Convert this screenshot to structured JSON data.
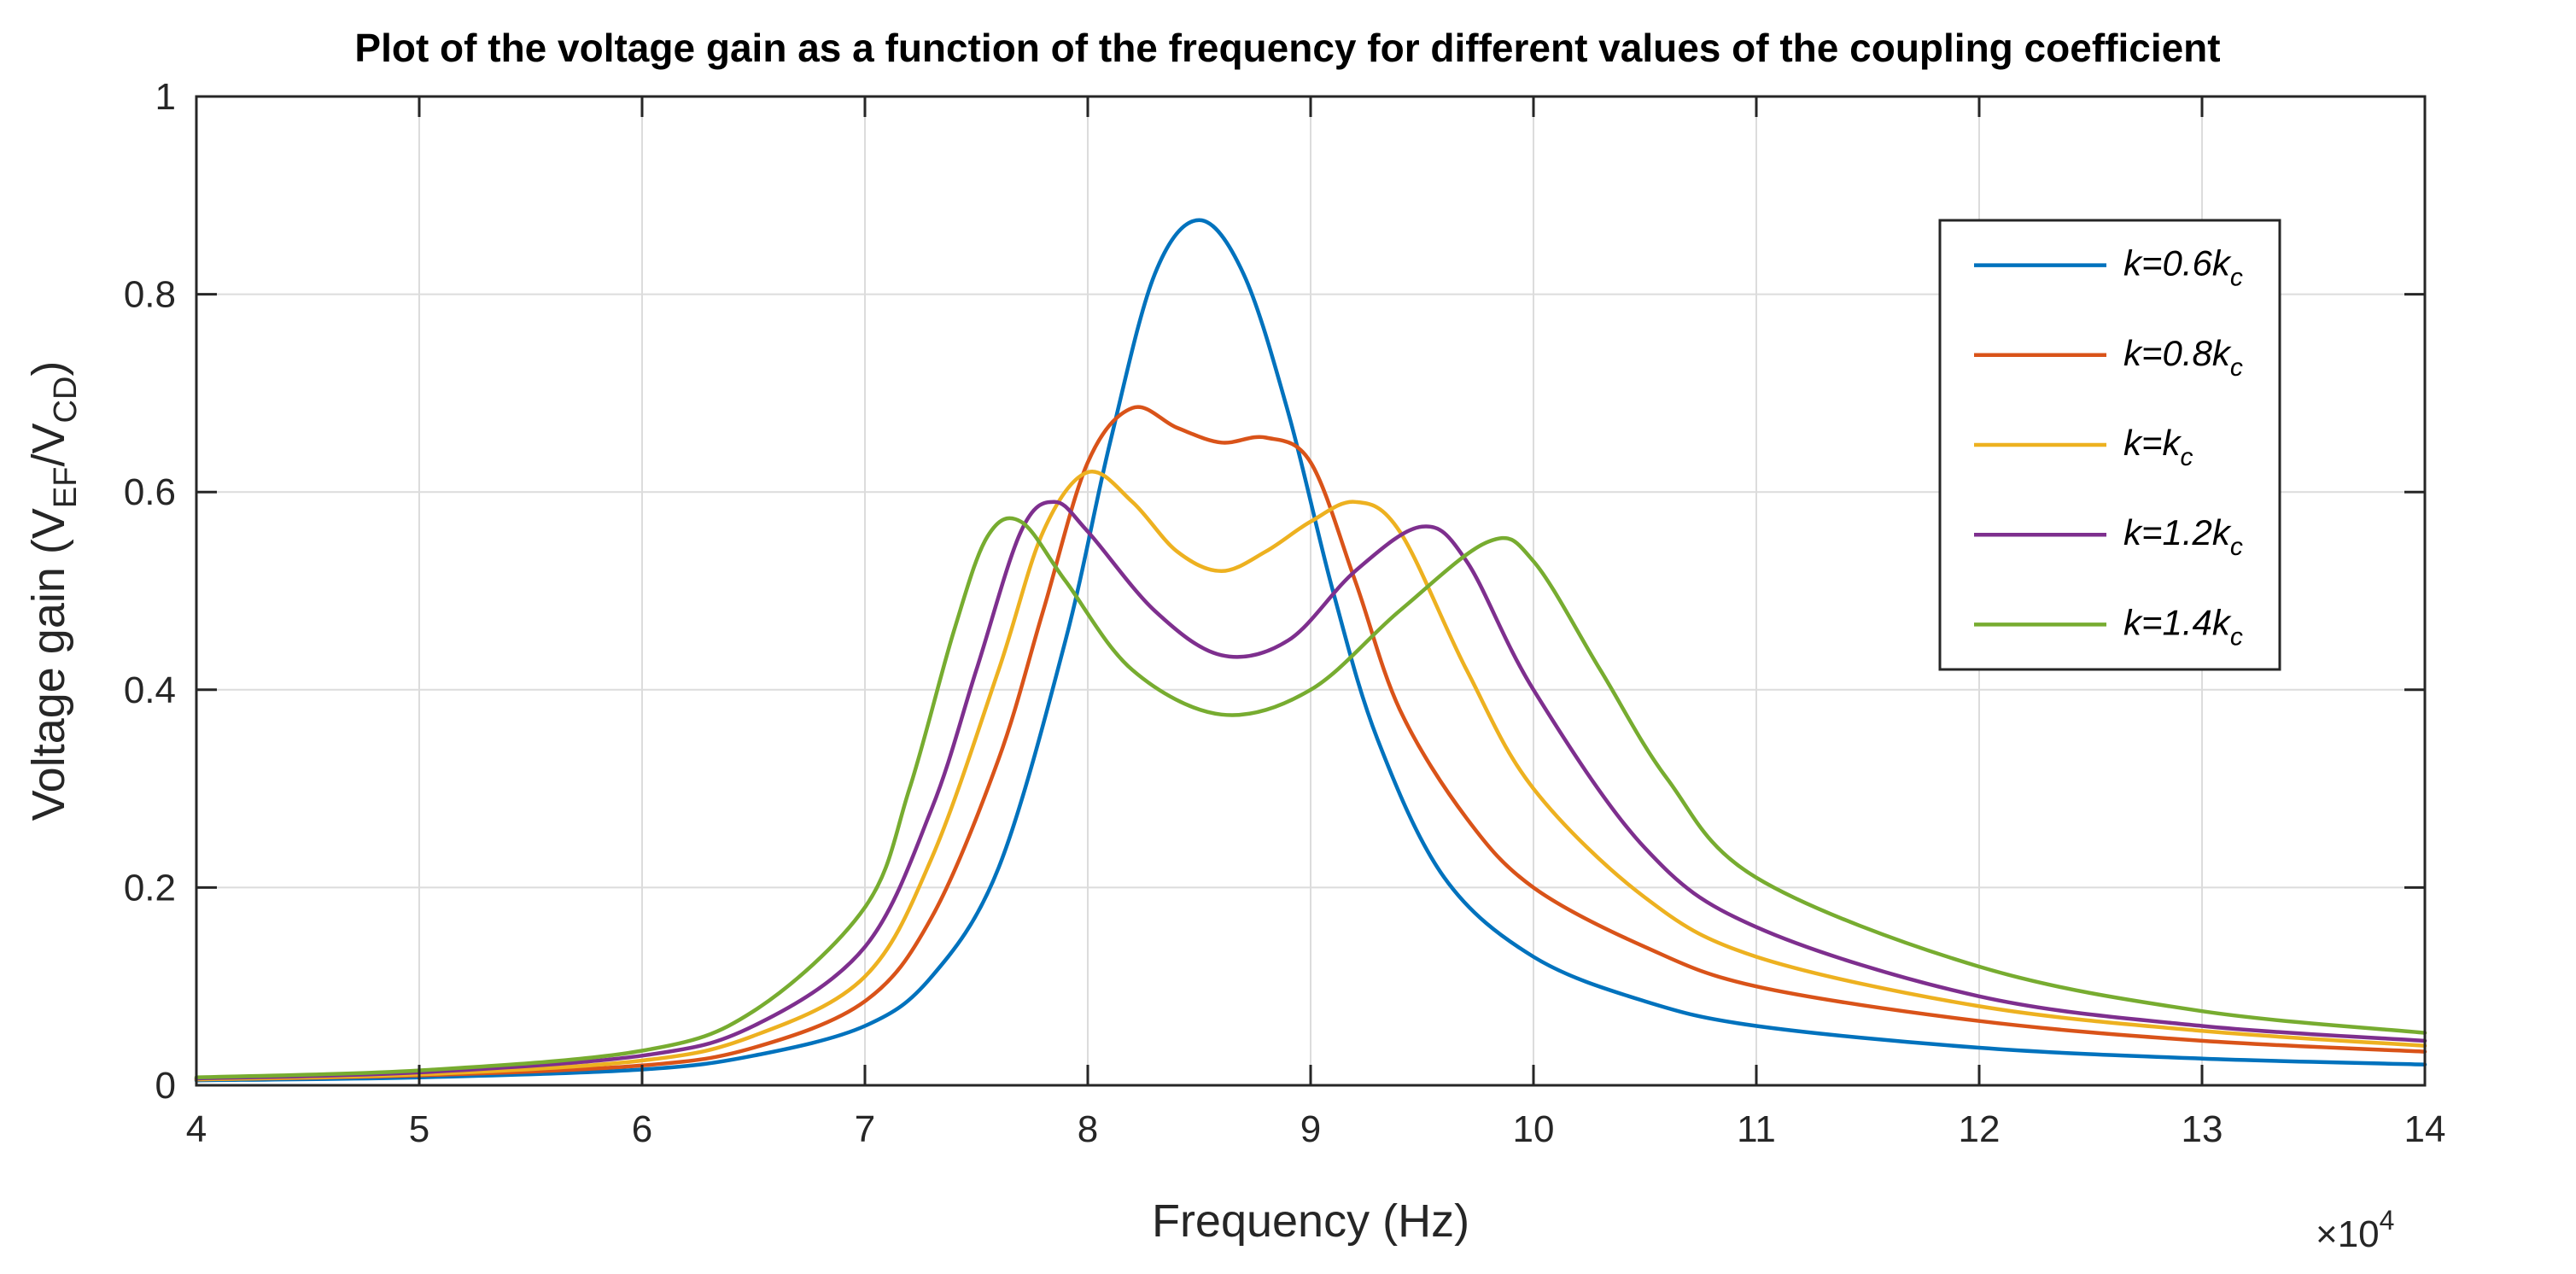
{
  "chart_data": {
    "type": "line",
    "title": "Plot of the voltage gain as a function of the frequency for different values of the coupling coefficient",
    "xlabel": "Frequency (Hz)",
    "ylabel": {
      "prefix": "Voltage gain (V",
      "sub1": "EF",
      "middle": "/V",
      "sub2": "CD",
      "suffix": ")"
    },
    "x_exponent": {
      "base": "×10",
      "power": "4"
    },
    "xlim": [
      4,
      14
    ],
    "ylim": [
      0,
      1
    ],
    "xticks": [
      "4",
      "5",
      "6",
      "7",
      "8",
      "9",
      "10",
      "11",
      "12",
      "13",
      "14"
    ],
    "yticks": [
      "0",
      "0.2",
      "0.4",
      "0.6",
      "0.8",
      "1"
    ],
    "grid": true,
    "legend_position": "top-right",
    "series": [
      {
        "name": "k=0.6kc",
        "label_main": "k=0.6k",
        "label_sub": "c",
        "color": "#0072BD",
        "x": [
          4,
          5,
          6,
          6.5,
          7,
          7.3,
          7.6,
          7.9,
          8.1,
          8.3,
          8.5,
          8.7,
          8.9,
          9.1,
          9.3,
          9.6,
          10,
          10.5,
          11,
          12,
          13,
          14
        ],
        "values": [
          0.005,
          0.008,
          0.016,
          0.03,
          0.06,
          0.11,
          0.22,
          0.45,
          0.65,
          0.82,
          0.875,
          0.82,
          0.68,
          0.5,
          0.35,
          0.21,
          0.13,
          0.085,
          0.06,
          0.038,
          0.027,
          0.021
        ]
      },
      {
        "name": "k=0.8kc",
        "label_main": "k=0.8k",
        "label_sub": "c",
        "color": "#D95319",
        "x": [
          4,
          5,
          6,
          6.5,
          7,
          7.3,
          7.6,
          7.8,
          8.0,
          8.2,
          8.4,
          8.6,
          8.8,
          9.0,
          9.2,
          9.4,
          9.7,
          10,
          10.5,
          11,
          12,
          13,
          14
        ],
        "values": [
          0.006,
          0.01,
          0.02,
          0.038,
          0.085,
          0.17,
          0.33,
          0.48,
          0.63,
          0.685,
          0.665,
          0.65,
          0.655,
          0.63,
          0.51,
          0.38,
          0.27,
          0.2,
          0.14,
          0.1,
          0.065,
          0.045,
          0.034
        ]
      },
      {
        "name": "k=kc",
        "label_main": "k=k",
        "label_sub": "c",
        "color": "#EDB120",
        "x": [
          4,
          5,
          6,
          6.5,
          7,
          7.3,
          7.6,
          7.8,
          8.0,
          8.2,
          8.4,
          8.6,
          8.8,
          9.0,
          9.2,
          9.4,
          9.7,
          10,
          10.5,
          11,
          12,
          13,
          14
        ],
        "values": [
          0.006,
          0.011,
          0.025,
          0.05,
          0.11,
          0.23,
          0.42,
          0.56,
          0.62,
          0.59,
          0.54,
          0.52,
          0.54,
          0.57,
          0.59,
          0.56,
          0.42,
          0.3,
          0.19,
          0.13,
          0.08,
          0.055,
          0.04
        ]
      },
      {
        "name": "k=1.2kc",
        "label_main": "k=1.2k",
        "label_sub": "c",
        "color": "#7E2F8E",
        "x": [
          4,
          5,
          6,
          6.5,
          7,
          7.3,
          7.5,
          7.7,
          7.85,
          8.0,
          8.3,
          8.6,
          8.9,
          9.2,
          9.5,
          9.7,
          10,
          10.5,
          11,
          12,
          13,
          14
        ],
        "values": [
          0.007,
          0.013,
          0.03,
          0.06,
          0.14,
          0.28,
          0.42,
          0.56,
          0.59,
          0.56,
          0.48,
          0.435,
          0.45,
          0.52,
          0.565,
          0.53,
          0.4,
          0.24,
          0.16,
          0.09,
          0.06,
          0.045
        ]
      },
      {
        "name": "k=1.4kc",
        "label_main": "k=1.4k",
        "label_sub": "c",
        "color": "#77AC30",
        "x": [
          4,
          5,
          6,
          6.5,
          7,
          7.2,
          7.4,
          7.55,
          7.7,
          7.9,
          8.2,
          8.6,
          9.0,
          9.4,
          9.8,
          10,
          10.3,
          10.6,
          11,
          12,
          13,
          14
        ],
        "values": [
          0.008,
          0.015,
          0.035,
          0.075,
          0.18,
          0.3,
          0.46,
          0.555,
          0.57,
          0.51,
          0.42,
          0.375,
          0.4,
          0.48,
          0.55,
          0.53,
          0.42,
          0.31,
          0.21,
          0.12,
          0.075,
          0.053
        ]
      }
    ]
  }
}
